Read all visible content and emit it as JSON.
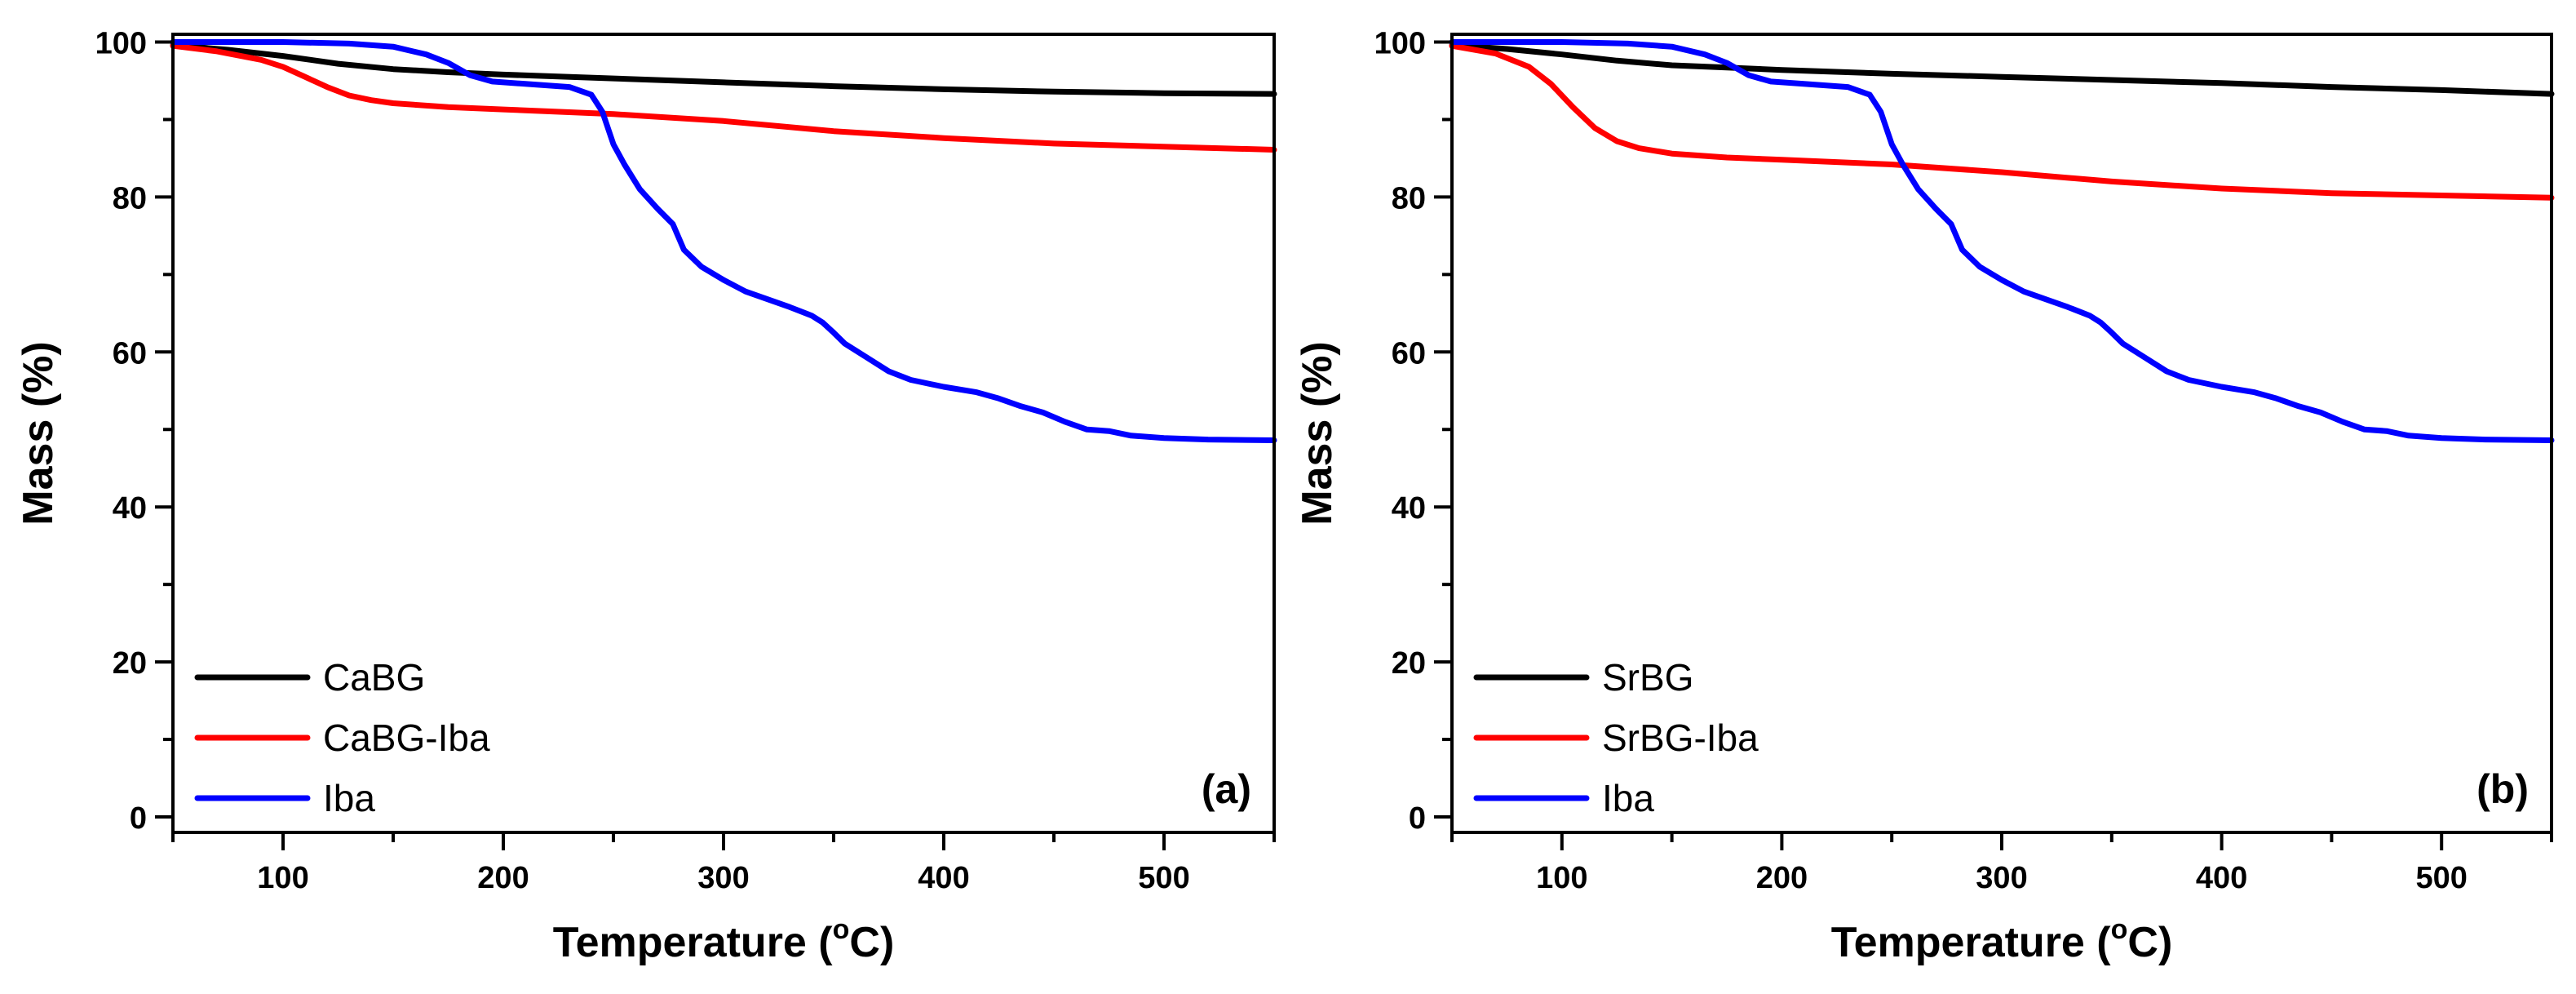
{
  "chart_data": [
    {
      "type": "line",
      "panel_label": "(a)",
      "xlabel": "Temperature (oC)",
      "xlabel_main": "Temperature (",
      "xlabel_sup": "o",
      "xlabel_end": "C)",
      "ylabel": "Mass (%)",
      "xlim": [
        50,
        550
      ],
      "ylim": [
        -2,
        101
      ],
      "xticks": [
        100,
        200,
        300,
        400,
        500
      ],
      "yticks": [
        0,
        20,
        40,
        60,
        80,
        100
      ],
      "legend_position": "bottom-left",
      "series": [
        {
          "name": "CaBG",
          "color": "#000000",
          "x": [
            50,
            75,
            100,
            125,
            150,
            175,
            200,
            250,
            300,
            350,
            400,
            450,
            500,
            550
          ],
          "y": [
            99.6,
            99.0,
            98.2,
            97.2,
            96.5,
            96.1,
            95.8,
            95.3,
            94.8,
            94.3,
            93.9,
            93.6,
            93.4,
            93.3
          ]
        },
        {
          "name": "CaBG-Iba",
          "color": "#ff0000",
          "x": [
            50,
            70,
            90,
            100,
            110,
            120,
            130,
            140,
            150,
            175,
            200,
            250,
            300,
            350,
            400,
            450,
            500,
            550
          ],
          "y": [
            99.5,
            98.8,
            97.7,
            96.8,
            95.5,
            94.2,
            93.1,
            92.5,
            92.1,
            91.6,
            91.3,
            90.7,
            89.8,
            88.5,
            87.6,
            86.9,
            86.5,
            86.1
          ]
        },
        {
          "name": "Iba",
          "color": "#0000ff",
          "x": [
            50,
            100,
            130,
            150,
            165,
            175,
            185,
            195,
            210,
            230,
            240,
            245,
            250,
            255,
            262,
            270,
            277,
            282,
            290,
            300,
            310,
            320,
            330,
            340,
            345,
            350,
            355,
            365,
            375,
            385,
            400,
            415,
            425,
            435,
            445,
            455,
            465,
            475,
            485,
            500,
            520,
            550
          ],
          "y": [
            100,
            100,
            99.8,
            99.4,
            98.4,
            97.3,
            95.7,
            94.9,
            94.6,
            94.2,
            93.2,
            91.0,
            86.8,
            84.2,
            81.0,
            78.5,
            76.5,
            73.2,
            71.0,
            69.3,
            67.8,
            66.8,
            65.8,
            64.7,
            63.8,
            62.5,
            61.1,
            59.3,
            57.5,
            56.4,
            55.5,
            54.8,
            54.0,
            53.0,
            52.2,
            51.0,
            50.0,
            49.8,
            49.2,
            48.9,
            48.7,
            48.6
          ]
        }
      ]
    },
    {
      "type": "line",
      "panel_label": "(b)",
      "xlabel": "Temperature (oC)",
      "xlabel_main": "Temperature (",
      "xlabel_sup": "o",
      "xlabel_end": "C)",
      "ylabel": "Mass (%)",
      "xlim": [
        50,
        550
      ],
      "ylim": [
        -2,
        101
      ],
      "xticks": [
        100,
        200,
        300,
        400,
        500
      ],
      "yticks": [
        0,
        20,
        40,
        60,
        80,
        100
      ],
      "legend_position": "bottom-left",
      "series": [
        {
          "name": "SrBG",
          "color": "#000000",
          "x": [
            50,
            75,
            100,
            125,
            150,
            175,
            200,
            250,
            300,
            350,
            400,
            450,
            500,
            550
          ],
          "y": [
            99.6,
            99.1,
            98.4,
            97.6,
            97.0,
            96.7,
            96.4,
            95.9,
            95.5,
            95.1,
            94.7,
            94.2,
            93.8,
            93.3
          ]
        },
        {
          "name": "SrBG-Iba",
          "color": "#ff0000",
          "x": [
            50,
            70,
            85,
            95,
            105,
            115,
            125,
            135,
            150,
            175,
            200,
            250,
            300,
            350,
            400,
            450,
            500,
            550
          ],
          "y": [
            99.5,
            98.5,
            96.8,
            94.6,
            91.6,
            88.9,
            87.2,
            86.3,
            85.6,
            85.1,
            84.8,
            84.2,
            83.2,
            82.0,
            81.1,
            80.5,
            80.2,
            79.9
          ]
        },
        {
          "name": "Iba",
          "color": "#0000ff",
          "x": [
            50,
            100,
            130,
            150,
            165,
            175,
            185,
            195,
            210,
            230,
            240,
            245,
            250,
            255,
            262,
            270,
            277,
            282,
            290,
            300,
            310,
            320,
            330,
            340,
            345,
            350,
            355,
            365,
            375,
            385,
            400,
            415,
            425,
            435,
            445,
            455,
            465,
            475,
            485,
            500,
            520,
            550
          ],
          "y": [
            100,
            100,
            99.8,
            99.4,
            98.4,
            97.3,
            95.7,
            94.9,
            94.6,
            94.2,
            93.2,
            91.0,
            86.8,
            84.2,
            81.0,
            78.5,
            76.5,
            73.2,
            71.0,
            69.3,
            67.8,
            66.8,
            65.8,
            64.7,
            63.8,
            62.5,
            61.1,
            59.3,
            57.5,
            56.4,
            55.5,
            54.8,
            54.0,
            53.0,
            52.2,
            51.0,
            50.0,
            49.8,
            49.2,
            48.9,
            48.7,
            48.6
          ]
        }
      ]
    }
  ]
}
